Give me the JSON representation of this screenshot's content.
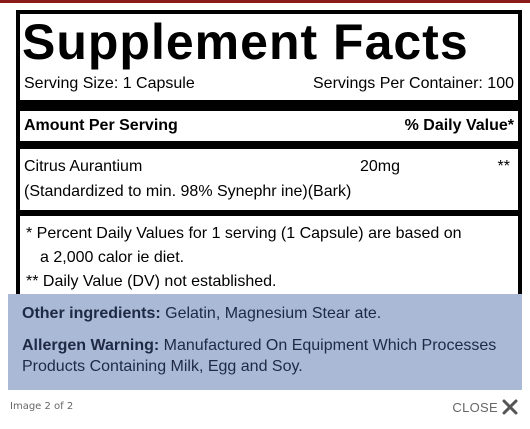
{
  "facts": {
    "title": "Supplement Facts",
    "serving_size": "Serving Size: 1 Capsule",
    "servings_per_container": "Servings Per Container: 100",
    "amount_header": "Amount Per Serving",
    "dv_header": "% Daily Value*",
    "ingredient": {
      "name": "Citrus Aurantium",
      "detail": "(Standardized to min. 98% Synephr ine)(Bark)",
      "amount": "20mg",
      "dv": "**"
    },
    "footnote_1a": "* Percent Daily Values for 1 serving (1 Capsule) are based on",
    "footnote_1b": "a 2,000 calor ie diet.",
    "footnote_2": "** Daily Value (DV) not established."
  },
  "other": {
    "ingredients_label": "Other ingredients:",
    "ingredients_value": " Gelatin, Magnesium Stear ate.",
    "allergen_label": "Allergen Warning:",
    "allergen_value_1": " Manufactured On Equipment Which Processes",
    "allergen_value_2": "Products Containing Milk, Egg and Soy."
  },
  "lightbox": {
    "caption": "Image 2 of 2",
    "close_label": "CLOSE"
  },
  "colors": {
    "accent_top": "#8a1b1b",
    "other_panel_bg": "#aab9d6",
    "other_text": "#1e2a44",
    "caption_text": "#666666"
  },
  "icons": {
    "close": "close-icon"
  }
}
